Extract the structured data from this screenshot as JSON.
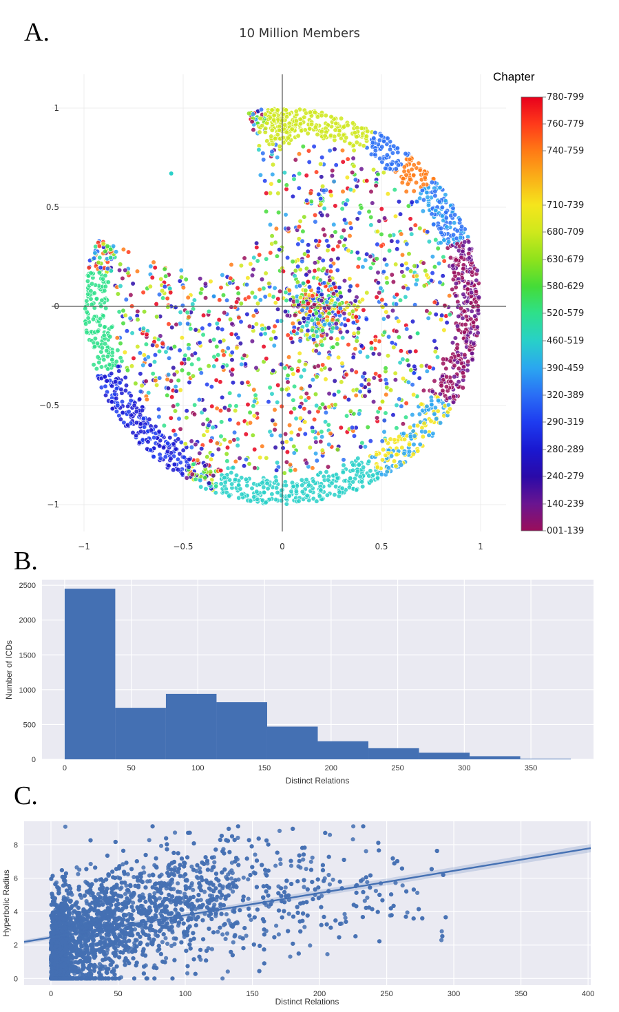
{
  "panels": {
    "a": "A.",
    "b": "B.",
    "c": "C."
  },
  "chart_data": [
    {
      "type": "scatter",
      "title": "10 Million Members",
      "xlabel": "",
      "ylabel": "",
      "xlim": [
        -1.05,
        1.12
      ],
      "ylim": [
        -1.05,
        1.12
      ],
      "x_ticks": [
        -1,
        -0.5,
        0,
        0.5,
        1
      ],
      "x_tick_labels": [
        "−1",
        "−0.5",
        "0",
        "0.5",
        "1"
      ],
      "y_ticks": [
        1,
        0.5,
        0,
        -0.5,
        -1
      ],
      "y_tick_labels": [
        "1",
        "0.5",
        "0",
        "−0.5",
        "−1"
      ],
      "grid": true,
      "description_points": "Points fill the Poincaré unit disk (r <= 1) except the wedge between about 100° and 160°; colored by ICD chapter group.",
      "legend": {
        "title": "Chapter",
        "placement": "right",
        "entries": [
          {
            "label": "780-799",
            "color": "#e8001c"
          },
          {
            "label": "760-779",
            "color": "#ff3a1a"
          },
          {
            "label": "740-759",
            "color": "#ff7a15"
          },
          {
            "label": "710-739",
            "color": "#f5e51c"
          },
          {
            "label": "680-709",
            "color": "#cfe81c"
          },
          {
            "label": "630-679",
            "color": "#8ee21c"
          },
          {
            "label": "580-629",
            "color": "#44dc38"
          },
          {
            "label": "520-579",
            "color": "#2ee08a"
          },
          {
            "label": "460-519",
            "color": "#28d0c8"
          },
          {
            "label": "390-459",
            "color": "#2ba6f0"
          },
          {
            "label": "320-389",
            "color": "#2a6ef5"
          },
          {
            "label": "290-319",
            "color": "#1e3cf0"
          },
          {
            "label": "280-289",
            "color": "#1a18d0"
          },
          {
            "label": "240-279",
            "color": "#2a0aa8"
          },
          {
            "label": "140-239",
            "color": "#6a1590"
          },
          {
            "label": "001-139",
            "color": "#9a0e5a"
          }
        ]
      }
    },
    {
      "type": "bar",
      "title": "",
      "xlabel": "Distinct Relations",
      "ylabel": "Number of ICDs",
      "bin_edges": [
        0,
        38,
        76,
        114,
        152,
        190,
        228,
        266,
        304,
        342,
        380
      ],
      "values": [
        2450,
        740,
        940,
        820,
        470,
        260,
        160,
        95,
        45,
        10
      ],
      "xlim": [
        -17,
        397
      ],
      "ylim": [
        0,
        2580
      ],
      "x_ticks": [
        0,
        50,
        100,
        150,
        200,
        250,
        300,
        350
      ],
      "y_ticks": [
        0,
        500,
        1000,
        1500,
        2000,
        2500
      ],
      "grid": true,
      "color": "#4470b3"
    },
    {
      "type": "scatter",
      "title": "",
      "xlabel": "Distinct Relations",
      "ylabel": "Hyperbolic Radius",
      "xlim": [
        -20,
        402
      ],
      "ylim": [
        -0.4,
        9.4
      ],
      "x_ticks": [
        0,
        50,
        100,
        150,
        200,
        250,
        300,
        350,
        400
      ],
      "y_ticks": [
        0,
        2,
        4,
        6,
        8
      ],
      "grid": true,
      "regression": {
        "slope": 0.0133,
        "intercept": 2.45
      },
      "color": "#4470b3"
    }
  ]
}
